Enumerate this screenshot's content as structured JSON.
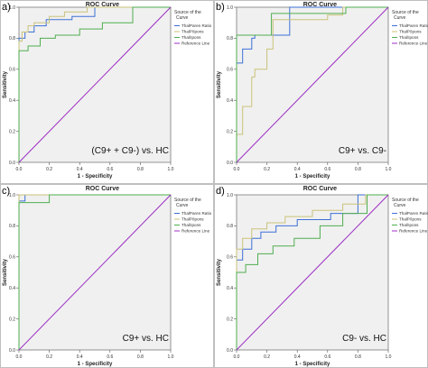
{
  "figure": {
    "panels_count": 4
  },
  "chart_data": [
    {
      "panel_label": "a)",
      "type": "line",
      "title": "ROC Curve",
      "xlabel": "1 - Specificity",
      "ylabel": "Sensitivity",
      "annotation": "(C9+ + C9-) vs. HC",
      "xlim": [
        0,
        1
      ],
      "ylim": [
        0,
        1
      ],
      "x_ticks": [
        "0.0",
        "0.2",
        "0.4",
        "0.6",
        "0.8",
        "1.0"
      ],
      "y_ticks": [
        "0.0",
        "0.2",
        "0.4",
        "0.6",
        "0.8",
        "1.0"
      ],
      "grid": false,
      "legend_title": "Source of the Curve",
      "legend_placement": "right",
      "series": [
        {
          "name": "ThalParen Ratio",
          "color": "#3d6fd6",
          "x": [
            0,
            0,
            0.04,
            0.04,
            0.1,
            0.1,
            0.18,
            0.18,
            0.35,
            0.35,
            0.5,
            0.5,
            1
          ],
          "y": [
            0,
            0.8,
            0.8,
            0.84,
            0.84,
            0.88,
            0.88,
            0.92,
            0.92,
            0.94,
            0.94,
            1,
            1
          ]
        },
        {
          "name": "ThalP/Ipons",
          "color": "#c9c27a",
          "x": [
            0,
            0,
            0.02,
            0.02,
            0.06,
            0.06,
            0.1,
            0.1,
            0.2,
            0.2,
            0.3,
            0.3,
            0.45,
            0.45,
            1
          ],
          "y": [
            0,
            0.78,
            0.78,
            0.84,
            0.84,
            0.88,
            0.88,
            0.9,
            0.9,
            0.94,
            0.94,
            0.97,
            0.97,
            1,
            1
          ]
        },
        {
          "name": "Thal/Ipons",
          "color": "#4fae4f",
          "x": [
            0,
            0,
            0.06,
            0.06,
            0.14,
            0.14,
            0.24,
            0.24,
            0.4,
            0.4,
            0.55,
            0.55,
            0.75,
            0.75,
            1
          ],
          "y": [
            0,
            0.72,
            0.72,
            0.75,
            0.75,
            0.8,
            0.8,
            0.82,
            0.82,
            0.86,
            0.86,
            0.9,
            0.9,
            1,
            1
          ]
        },
        {
          "name": "Reference Line",
          "color": "#9c2fc4",
          "x": [
            0,
            1
          ],
          "y": [
            0,
            1
          ]
        }
      ]
    },
    {
      "panel_label": "b)",
      "type": "line",
      "title": "ROC Curve",
      "xlabel": "1 - Specificity",
      "ylabel": "Sensitivity",
      "annotation": "C9+ vs. C9-",
      "xlim": [
        0,
        1
      ],
      "ylim": [
        0,
        1
      ],
      "x_ticks": [
        "0.0",
        "0.2",
        "0.4",
        "0.6",
        "0.8",
        "1.0"
      ],
      "y_ticks": [
        "0.0",
        "0.2",
        "0.4",
        "0.6",
        "0.8",
        "1.0"
      ],
      "grid": false,
      "legend_title": "Source of the Curve",
      "legend_placement": "right",
      "series": [
        {
          "name": "ThalParen Ratio",
          "color": "#3d6fd6",
          "x": [
            0,
            0,
            0.04,
            0.04,
            0.1,
            0.1,
            0.12,
            0.12,
            0.35,
            0.35,
            1
          ],
          "y": [
            0,
            0.64,
            0.64,
            0.73,
            0.73,
            0.8,
            0.8,
            0.82,
            0.82,
            1,
            1
          ]
        },
        {
          "name": "ThalP/Ipons",
          "color": "#c9c27a",
          "x": [
            0,
            0,
            0.04,
            0.04,
            0.1,
            0.1,
            0.12,
            0.12,
            0.2,
            0.2,
            0.24,
            0.24,
            0.6,
            0.6,
            0.7,
            0.7,
            1
          ],
          "y": [
            0,
            0.18,
            0.18,
            0.36,
            0.36,
            0.55,
            0.55,
            0.6,
            0.6,
            0.73,
            0.73,
            0.92,
            0.92,
            0.95,
            0.95,
            1,
            1
          ]
        },
        {
          "name": "Thal/Ipons",
          "color": "#4fae4f",
          "x": [
            0,
            0,
            0.23,
            0.23,
            0.72,
            0.72,
            1
          ],
          "y": [
            0,
            0.82,
            0.82,
            0.96,
            0.96,
            1,
            1
          ]
        },
        {
          "name": "Reference Line",
          "color": "#9c2fc4",
          "x": [
            0,
            1
          ],
          "y": [
            0,
            1
          ]
        }
      ]
    },
    {
      "panel_label": "c)",
      "type": "line",
      "title": "ROC Curve",
      "xlabel": "1 - Specificity",
      "ylabel": "Sensitivity",
      "annotation": "C9+ vs. HC",
      "xlim": [
        0,
        1
      ],
      "ylim": [
        0,
        1
      ],
      "x_ticks": [
        "0.0",
        "0.2",
        "0.4",
        "0.6",
        "0.8",
        "1.0"
      ],
      "y_ticks": [
        "0.0",
        "0.2",
        "0.4",
        "0.6",
        "0.8",
        "1.0"
      ],
      "grid": false,
      "legend_title": "Source of the Curve",
      "legend_placement": "right",
      "series": [
        {
          "name": "ThalParen Ratio",
          "color": "#3d6fd6",
          "x": [
            0,
            0,
            0.04,
            0.04,
            1
          ],
          "y": [
            0,
            0.96,
            0.96,
            1,
            1
          ]
        },
        {
          "name": "ThalP/Ipons",
          "color": "#c9c27a",
          "x": [
            0,
            0,
            1
          ],
          "y": [
            0,
            1,
            1
          ]
        },
        {
          "name": "Thal/Ipons",
          "color": "#4fae4f",
          "x": [
            0,
            0,
            0.2,
            0.2,
            1
          ],
          "y": [
            0,
            0.95,
            0.95,
            1,
            1
          ]
        },
        {
          "name": "Reference Line",
          "color": "#9c2fc4",
          "x": [
            0,
            1
          ],
          "y": [
            0,
            1
          ]
        }
      ]
    },
    {
      "panel_label": "d)",
      "type": "line",
      "title": "ROC Curve",
      "xlabel": "1 - Specificity",
      "ylabel": "Sensitivity",
      "annotation": "C9- vs. HC",
      "xlim": [
        0,
        1
      ],
      "ylim": [
        0,
        1
      ],
      "x_ticks": [
        "0.0",
        "0.2",
        "0.4",
        "0.6",
        "0.8",
        "1.0"
      ],
      "y_ticks": [
        "0.0",
        "0.2",
        "0.4",
        "0.6",
        "0.8",
        "1.0"
      ],
      "grid": false,
      "legend_title": "Source of the Curve",
      "legend_placement": "right",
      "series": [
        {
          "name": "ThalParen Ratio",
          "color": "#3d6fd6",
          "x": [
            0,
            0,
            0.04,
            0.04,
            0.1,
            0.1,
            0.16,
            0.16,
            0.26,
            0.26,
            0.4,
            0.4,
            0.62,
            0.62,
            0.8,
            0.8,
            1
          ],
          "y": [
            0,
            0.58,
            0.58,
            0.65,
            0.65,
            0.72,
            0.72,
            0.76,
            0.76,
            0.8,
            0.8,
            0.84,
            0.84,
            0.88,
            0.88,
            1,
            1
          ]
        },
        {
          "name": "ThalP/Ipons",
          "color": "#c9c27a",
          "x": [
            0,
            0,
            0.04,
            0.04,
            0.1,
            0.1,
            0.2,
            0.2,
            0.32,
            0.32,
            0.5,
            0.5,
            0.7,
            0.7,
            0.85,
            0.85,
            1
          ],
          "y": [
            0,
            0.65,
            0.65,
            0.72,
            0.72,
            0.78,
            0.78,
            0.82,
            0.82,
            0.86,
            0.86,
            0.9,
            0.9,
            0.94,
            0.94,
            1,
            1
          ]
        },
        {
          "name": "Thal/Ipons",
          "color": "#4fae4f",
          "x": [
            0,
            0,
            0.06,
            0.06,
            0.14,
            0.14,
            0.24,
            0.24,
            0.38,
            0.38,
            0.55,
            0.55,
            0.7,
            0.7,
            0.86,
            0.86,
            1
          ],
          "y": [
            0,
            0.5,
            0.5,
            0.55,
            0.55,
            0.62,
            0.62,
            0.67,
            0.67,
            0.72,
            0.72,
            0.8,
            0.8,
            0.88,
            0.88,
            1,
            1
          ]
        },
        {
          "name": "Reference Line",
          "color": "#9c2fc4",
          "x": [
            0,
            1
          ],
          "y": [
            0,
            1
          ]
        }
      ]
    }
  ]
}
